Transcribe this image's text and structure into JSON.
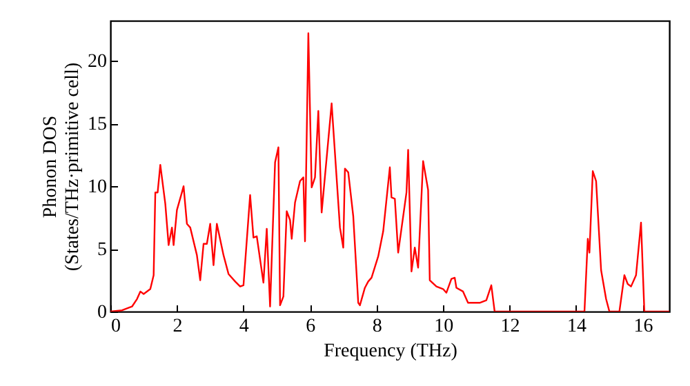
{
  "chart_data": {
    "type": "line",
    "xlabel": "Frequency (THz)",
    "ylabel": "Phonon DOS\n(States/THz·primitive cell)",
    "xlim": [
      0,
      16.8
    ],
    "xticks": [
      0,
      2,
      4,
      6,
      8,
      10,
      12,
      14,
      16
    ],
    "ylim": [
      0,
      23.2
    ],
    "yticks": [
      0,
      5,
      10,
      15,
      20
    ],
    "grid": false,
    "series": [
      {
        "color": "#ff0000",
        "x": [
          0,
          0.35,
          0.65,
          0.8,
          0.9,
          1.0,
          1.2,
          1.3,
          1.35,
          1.42,
          1.5,
          1.65,
          1.75,
          1.85,
          1.9,
          2.0,
          2.15,
          2.2,
          2.3,
          2.4,
          2.6,
          2.7,
          2.8,
          2.9,
          3.0,
          3.1,
          3.2,
          3.4,
          3.55,
          3.75,
          3.9,
          4.0,
          4.2,
          4.3,
          4.4,
          4.6,
          4.7,
          4.8,
          4.95,
          5.05,
          5.1,
          5.2,
          5.3,
          5.4,
          5.45,
          5.55,
          5.7,
          5.8,
          5.85,
          5.95,
          6.05,
          6.15,
          6.25,
          6.35,
          6.65,
          6.9,
          7.0,
          7.05,
          7.15,
          7.3,
          7.45,
          7.5,
          7.65,
          7.75,
          7.85,
          8.05,
          8.2,
          8.4,
          8.45,
          8.55,
          8.65,
          8.9,
          8.95,
          9.05,
          9.15,
          9.25,
          9.4,
          9.55,
          9.6,
          9.8,
          10.0,
          10.1,
          10.25,
          10.35,
          10.4,
          10.6,
          10.75,
          11.1,
          11.3,
          11.45,
          11.55,
          14.25,
          14.35,
          14.4,
          14.5,
          14.6,
          14.75,
          14.9,
          15.0,
          15.3,
          15.45,
          15.55,
          15.65,
          15.8,
          15.95,
          16.05,
          16.8
        ],
        "values": [
          0,
          0.1,
          0.4,
          1.0,
          1.6,
          1.4,
          1.8,
          2.9,
          9.5,
          9.5,
          11.7,
          8.6,
          5.3,
          6.7,
          5.3,
          8.1,
          9.5,
          10.0,
          7.0,
          6.7,
          4.5,
          2.5,
          5.4,
          5.4,
          7.0,
          3.7,
          7.0,
          4.5,
          3.0,
          2.4,
          2.0,
          2.1,
          9.3,
          5.9,
          6.0,
          2.3,
          6.6,
          0.4,
          11.9,
          13.1,
          0.5,
          1.2,
          8.0,
          7.3,
          5.8,
          8.7,
          10.4,
          10.7,
          5.6,
          22.2,
          9.9,
          10.7,
          16.0,
          7.9,
          16.6,
          6.7,
          5.1,
          11.4,
          11.1,
          7.6,
          0.7,
          0.5,
          1.9,
          2.4,
          2.7,
          4.4,
          6.4,
          11.5,
          9.1,
          9.0,
          4.7,
          9.5,
          12.9,
          3.2,
          5.1,
          3.5,
          12.0,
          9.7,
          2.5,
          2.0,
          1.8,
          1.5,
          2.6,
          2.7,
          1.9,
          1.6,
          0.7,
          0.7,
          0.9,
          2.1,
          0,
          0,
          5.8,
          4.7,
          11.2,
          10.4,
          3.3,
          1.0,
          0,
          0,
          2.9,
          2.2,
          2.0,
          2.9,
          7.1,
          0,
          0
        ]
      }
    ]
  }
}
